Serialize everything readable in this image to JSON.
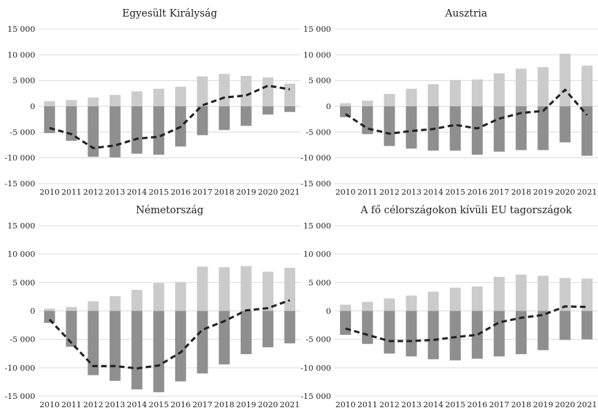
{
  "chart_data": [
    {
      "type": "bar",
      "title": "Egyesült Királyság",
      "categories": [
        "2010",
        "2011",
        "2012",
        "2013",
        "2014",
        "2015",
        "2016",
        "2017",
        "2018",
        "2019",
        "2020",
        "2021"
      ],
      "ylim": [
        -15000,
        15000
      ],
      "yticks": [
        "15 000",
        "10 000",
        "5 000",
        "0",
        "-5 000",
        "-10 000",
        "-15 000"
      ],
      "series": [
        {
          "kind": "bar",
          "color": "#cbcbcb",
          "values": [
            1000,
            1200,
            1700,
            2200,
            2900,
            3400,
            3800,
            5800,
            6300,
            5900,
            5600,
            4400
          ]
        },
        {
          "kind": "bar",
          "color": "#8f8f8f",
          "values": [
            -5200,
            -6700,
            -9800,
            -9900,
            -9200,
            -9400,
            -7800,
            -5600,
            -4600,
            -3800,
            -1600,
            -1100
          ]
        },
        {
          "kind": "line",
          "style": "dashed",
          "color": "#222222",
          "values": [
            -4200,
            -5400,
            -8100,
            -7600,
            -6300,
            -5900,
            -4000,
            200,
            1700,
            2100,
            4000,
            3300
          ]
        }
      ]
    },
    {
      "type": "bar",
      "title": "Ausztria",
      "categories": [
        "2010",
        "2011",
        "2012",
        "2013",
        "2014",
        "2015",
        "2016",
        "2017",
        "2018",
        "2019",
        "2020",
        "2021"
      ],
      "ylim": [
        -15000,
        15000
      ],
      "yticks": [
        "15 000",
        "10 000",
        "5 000",
        "0",
        "-5 000",
        "-10 000",
        "-15 000"
      ],
      "series": [
        {
          "kind": "bar",
          "color": "#cbcbcb",
          "values": [
            600,
            1100,
            2400,
            3400,
            4300,
            5100,
            5200,
            6400,
            7300,
            7600,
            10200,
            7900
          ]
        },
        {
          "kind": "bar",
          "color": "#8f8f8f",
          "values": [
            -2100,
            -5400,
            -7700,
            -8200,
            -8600,
            -8600,
            -9400,
            -8800,
            -8500,
            -8500,
            -7000,
            -9600
          ]
        },
        {
          "kind": "line",
          "style": "dashed",
          "color": "#222222",
          "values": [
            -1500,
            -4300,
            -5300,
            -4800,
            -4400,
            -3600,
            -4300,
            -2400,
            -1300,
            -900,
            3200,
            -1700
          ]
        }
      ]
    },
    {
      "type": "bar",
      "title": "Németország",
      "categories": [
        "2010",
        "2011",
        "2012",
        "2013",
        "2014",
        "2015",
        "2016",
        "2017",
        "2018",
        "2019",
        "2020",
        "2021"
      ],
      "ylim": [
        -15000,
        15000
      ],
      "yticks": [
        "15 000",
        "10 000",
        "5 000",
        "0",
        "-5 000",
        "-10 000",
        "-15 000"
      ],
      "series": [
        {
          "kind": "bar",
          "color": "#cbcbcb",
          "values": [
            400,
            700,
            1700,
            2600,
            3700,
            4900,
            5100,
            7800,
            7700,
            7900,
            6900,
            7600
          ]
        },
        {
          "kind": "bar",
          "color": "#8f8f8f",
          "values": [
            -2100,
            -6300,
            -11300,
            -12300,
            -13800,
            -14300,
            -12400,
            -11000,
            -9400,
            -7600,
            -6400,
            -5700
          ]
        },
        {
          "kind": "line",
          "style": "dashed",
          "color": "#222222",
          "values": [
            -1500,
            -5600,
            -9700,
            -9700,
            -10100,
            -9600,
            -7300,
            -3300,
            -1800,
            100,
            500,
            1900
          ]
        }
      ]
    },
    {
      "type": "bar",
      "title": "A fő célországokon kívüli EU tagországok",
      "categories": [
        "2010",
        "2011",
        "2012",
        "2013",
        "2014",
        "2015",
        "2016",
        "2017",
        "2018",
        "2019",
        "2020",
        "2021"
      ],
      "ylim": [
        -15000,
        15000
      ],
      "yticks": [
        "15 000",
        "10 000",
        "5 000",
        "0",
        "-5 000",
        "-10 000",
        "-15 000"
      ],
      "series": [
        {
          "kind": "bar",
          "color": "#cbcbcb",
          "values": [
            1100,
            1600,
            2200,
            2700,
            3400,
            4100,
            4300,
            6000,
            6400,
            6200,
            5800,
            5700
          ]
        },
        {
          "kind": "bar",
          "color": "#8f8f8f",
          "values": [
            -4200,
            -5800,
            -7500,
            -8000,
            -8500,
            -8700,
            -8400,
            -8000,
            -7600,
            -6900,
            -5100,
            -5000
          ]
        },
        {
          "kind": "line",
          "style": "dashed",
          "color": "#222222",
          "values": [
            -3100,
            -4200,
            -5300,
            -5300,
            -5100,
            -4600,
            -4200,
            -2000,
            -1200,
            -700,
            800,
            700
          ]
        }
      ]
    }
  ]
}
